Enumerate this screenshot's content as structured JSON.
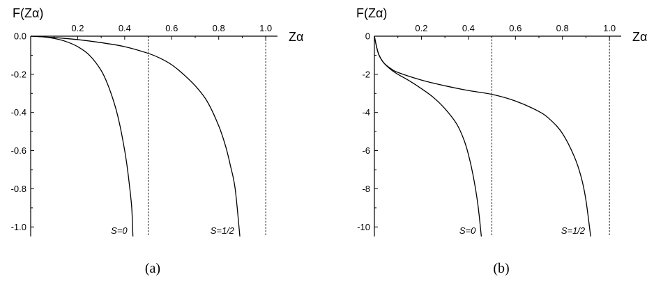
{
  "chart_data": [
    {
      "type": "line",
      "caption": "(a)",
      "xlabel": "Zα",
      "ylabel": "F(Zα)",
      "xlim": [
        0,
        1.05
      ],
      "ylim": [
        -1.05,
        0
      ],
      "x_ticks": [
        0.2,
        0.4,
        0.6,
        0.8,
        1.0
      ],
      "x_tick_labels": [
        "0.2",
        "0.4",
        "0.6",
        "0.8",
        "1.0"
      ],
      "y_ticks": [
        0,
        -0.2,
        -0.4,
        -0.6,
        -0.8,
        -1.0
      ],
      "y_tick_labels": [
        "0.0",
        "-0.2",
        "-0.4",
        "-0.6",
        "-0.8",
        "-1.0"
      ],
      "vlines": [
        0.5,
        1.0
      ],
      "series": [
        {
          "name": "S=0",
          "x": [
            0,
            0.05,
            0.1,
            0.15,
            0.2,
            0.25,
            0.3,
            0.33,
            0.36,
            0.38,
            0.4,
            0.41,
            0.42,
            0.43,
            0.435
          ],
          "y": [
            0,
            -0.003,
            -0.012,
            -0.028,
            -0.055,
            -0.1,
            -0.18,
            -0.26,
            -0.37,
            -0.47,
            -0.6,
            -0.68,
            -0.78,
            -0.9,
            -1.05
          ]
        },
        {
          "name": "S=1/2",
          "x": [
            0,
            0.1,
            0.2,
            0.3,
            0.4,
            0.5,
            0.55,
            0.6,
            0.65,
            0.7,
            0.75,
            0.8,
            0.83,
            0.85,
            0.87,
            0.89
          ],
          "y": [
            0,
            -0.007,
            -0.018,
            -0.034,
            -0.055,
            -0.09,
            -0.115,
            -0.15,
            -0.2,
            -0.26,
            -0.34,
            -0.47,
            -0.58,
            -0.68,
            -0.8,
            -1.05
          ]
        }
      ]
    },
    {
      "type": "line",
      "caption": "(b)",
      "xlabel": "Zα",
      "ylabel": "F(Zα)",
      "xlim": [
        0,
        1.05
      ],
      "ylim": [
        -10.5,
        0
      ],
      "x_ticks": [
        0.2,
        0.4,
        0.6,
        0.8,
        1.0
      ],
      "x_tick_labels": [
        "0.2",
        "0.4",
        "0.6",
        "0.8",
        "1.0"
      ],
      "y_ticks": [
        0,
        -2,
        -4,
        -6,
        -8,
        -10
      ],
      "y_tick_labels": [
        "0",
        "-2",
        "-4",
        "-6",
        "-8",
        "-10"
      ],
      "vlines": [
        0.5,
        1.0
      ],
      "series": [
        {
          "name": "S=0",
          "x": [
            0,
            0.01,
            0.02,
            0.04,
            0.07,
            0.1,
            0.15,
            0.2,
            0.25,
            0.3,
            0.35,
            0.38,
            0.4,
            0.42,
            0.44,
            0.455
          ],
          "y": [
            0,
            -0.6,
            -1.0,
            -1.4,
            -1.75,
            -2.0,
            -2.35,
            -2.75,
            -3.2,
            -3.8,
            -4.6,
            -5.4,
            -6.2,
            -7.3,
            -8.8,
            -10.5
          ]
        },
        {
          "name": "S=1/2",
          "x": [
            0,
            0.01,
            0.02,
            0.04,
            0.07,
            0.1,
            0.2,
            0.3,
            0.4,
            0.5,
            0.6,
            0.7,
            0.75,
            0.8,
            0.85,
            0.88,
            0.9,
            0.92
          ],
          "y": [
            0,
            -0.6,
            -1.0,
            -1.4,
            -1.7,
            -1.9,
            -2.3,
            -2.6,
            -2.85,
            -3.05,
            -3.4,
            -3.95,
            -4.4,
            -5.1,
            -6.3,
            -7.4,
            -8.6,
            -10.5
          ]
        }
      ]
    }
  ]
}
